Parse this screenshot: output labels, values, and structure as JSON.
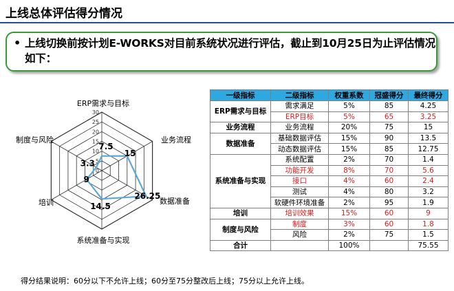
{
  "title": "上线总体评估得分情况",
  "callout": {
    "bullet": "•",
    "text": "上线切换前按计划E-WORKS对目前系统状况进行评估，截止到10月25日为止评估情况如下："
  },
  "chart_data": {
    "type": "radar",
    "axes": [
      "ERP需求与目标",
      "业务流程",
      "数据准备",
      "系统准备与实现",
      "培训",
      "制度与风险"
    ],
    "values": [
      7.5,
      15,
      26.25,
      14.5,
      9,
      3.3
    ],
    "value_labels": [
      "7.5",
      "15",
      "26.25",
      "14.5",
      "9",
      "3.3"
    ],
    "ticks": [
      "0",
      "5",
      "10",
      "15",
      "20",
      "25",
      "30"
    ],
    "rmax": 30,
    "series_color": "#5aa9d6",
    "grid_color": "#333333"
  },
  "table": {
    "headers": [
      "一级指标",
      "二级指标",
      "权重系数",
      "冠盛得分",
      "最终得分"
    ],
    "groups": [
      {
        "name": "ERP需求与目标",
        "rows": [
          {
            "item": "需求满足",
            "weight": "5%",
            "score": "85",
            "final": "4.25",
            "red": false
          },
          {
            "item": "ERP目标",
            "weight": "5%",
            "score": "65",
            "final": "3.25",
            "red": true
          }
        ]
      },
      {
        "name": "业务流程",
        "rows": [
          {
            "item": "业务流程",
            "weight": "20%",
            "score": "75",
            "final": "15",
            "red": false
          }
        ]
      },
      {
        "name": "数据准备",
        "rows": [
          {
            "item": "基础数据评估",
            "weight": "15%",
            "score": "90",
            "final": "13.5",
            "red": false
          },
          {
            "item": "动态数据评估",
            "weight": "15%",
            "score": "85",
            "final": "12.75",
            "red": false
          }
        ]
      },
      {
        "name": "系统准备与实现",
        "rows": [
          {
            "item": "系统配置",
            "weight": "2%",
            "score": "70",
            "final": "1.4",
            "red": false
          },
          {
            "item": "功能开发",
            "weight": "8%",
            "score": "70",
            "final": "5.6",
            "red": true
          },
          {
            "item": "接口",
            "weight": "4%",
            "score": "60",
            "final": "2.4",
            "red": true
          },
          {
            "item": "测试",
            "weight": "4%",
            "score": "80",
            "final": "3.2",
            "red": false
          },
          {
            "item": "软硬件环境准备",
            "weight": "2%",
            "score": "95",
            "final": "1.9",
            "red": false
          }
        ]
      },
      {
        "name": "培训",
        "rows": [
          {
            "item": "培训效果",
            "weight": "15%",
            "score": "60",
            "final": "9",
            "red": true
          }
        ]
      },
      {
        "name": "制度与风险",
        "rows": [
          {
            "item": "制度",
            "weight": "3%",
            "score": "60",
            "final": "1.8",
            "red": true
          },
          {
            "item": "风险",
            "weight": "2%",
            "score": "75",
            "final": "1.5",
            "red": false
          }
        ]
      }
    ],
    "total": {
      "label": "合计",
      "weight": "100%",
      "final": "75.55"
    }
  },
  "footnote": "得分结果说明：60分以下不允许上线；60分至75分整改后上线；75分以上允许上线。"
}
